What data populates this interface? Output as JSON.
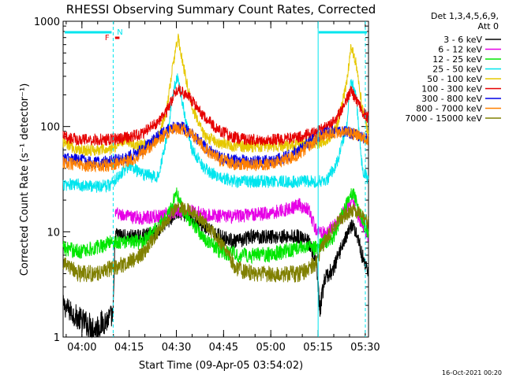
{
  "chart_data": {
    "type": "line",
    "title": "RHESSI Observing Summary Count Rates, Corrected",
    "xlabel": "Start Time (09-Apr-05 03:54:02)",
    "ylabel": "Corrected Count Rate (s⁻¹ detector⁻¹)",
    "y_scale": "log",
    "ylim": [
      1,
      1000
    ],
    "xlim_minutes": [
      0,
      97
    ],
    "x_tick_labels": [
      "04:00",
      "04:15",
      "04:30",
      "04:45",
      "05:00",
      "05:15",
      "05:30"
    ],
    "x_tick_minutes": [
      5.97,
      20.97,
      35.97,
      50.97,
      65.97,
      80.97,
      95.97
    ],
    "y_tick_labels": [
      "1",
      "10",
      "100",
      "1000"
    ],
    "y_ticks": [
      1,
      10,
      100,
      1000
    ],
    "legend_header": [
      "Det 1,3,4,5,6,9,",
      "Att 0"
    ],
    "legend_placement": "right",
    "timestamp": "16-Oct-2021 00:20",
    "flags": {
      "night_label": "N",
      "flare_label": "F"
    },
    "flag_colors": {
      "night": "#00e5ee",
      "flare": "#e60000"
    },
    "boundaries_minutes": {
      "night_end": 15.9,
      "night_start": 81.0
    },
    "series": [
      {
        "name": "3 - 6 keV",
        "color": "#000000",
        "key_minutes": [
          0,
          5,
          10,
          15.9,
          16.5,
          20,
          25,
          30,
          36,
          40,
          45,
          50,
          55,
          60,
          65,
          70,
          75,
          78,
          80.5,
          81.5,
          83,
          86,
          89,
          92,
          94,
          95,
          97
        ],
        "values": [
          2,
          1.5,
          1.2,
          1.6,
          9.5,
          9,
          9,
          10,
          15,
          14,
          11,
          9,
          8,
          9,
          9,
          9,
          9,
          8,
          5,
          1.7,
          3.5,
          4.5,
          8,
          12,
          8,
          6,
          4
        ]
      },
      {
        "name": "6 - 12 keV",
        "color": "#e600e6",
        "key_minutes": [
          0,
          15.9,
          16.5,
          20,
          25,
          30,
          36,
          40,
          45,
          50,
          55,
          60,
          65,
          70,
          75,
          78,
          80.5,
          83,
          86,
          89,
          92,
          94,
          97
        ],
        "values": [
          null,
          null,
          15,
          14,
          13.5,
          14,
          16,
          16,
          14.5,
          14,
          14,
          14.5,
          15,
          16,
          18,
          16,
          10,
          10,
          11,
          15,
          20,
          13,
          9
        ]
      },
      {
        "name": "12 - 25 keV",
        "color": "#00e600",
        "key_minutes": [
          0,
          5,
          10,
          15,
          20,
          25,
          30,
          34,
          36,
          38,
          42,
          46,
          50,
          55,
          60,
          65,
          70,
          75,
          78,
          80,
          83,
          86,
          89,
          92,
          94,
          97
        ],
        "values": [
          7,
          6.5,
          7,
          8,
          8,
          8,
          11,
          16,
          24,
          16,
          11,
          8,
          6.5,
          6,
          6,
          6,
          6.5,
          7,
          7.5,
          7,
          8,
          9,
          16,
          24,
          16,
          9
        ]
      },
      {
        "name": "25 - 50 keV",
        "color": "#00e5ee",
        "key_minutes": [
          0,
          5,
          10,
          15,
          18,
          21,
          25,
          30,
          33,
          35,
          36.5,
          38,
          41,
          45,
          50,
          55,
          60,
          65,
          70,
          75,
          78,
          81,
          84,
          87,
          90,
          91.5,
          93,
          95,
          97
        ],
        "values": [
          28,
          28,
          27,
          28,
          35,
          43,
          35,
          33,
          80,
          220,
          300,
          160,
          60,
          40,
          32,
          30,
          30,
          30,
          30,
          30,
          30,
          30,
          32,
          45,
          100,
          280,
          200,
          40,
          30
        ]
      },
      {
        "name": "50 - 100 keV",
        "color": "#e6c800",
        "key_minutes": [
          0,
          5,
          10,
          15,
          18,
          20,
          23,
          27,
          30,
          33,
          35,
          36.5,
          38,
          41,
          45,
          50,
          55,
          60,
          65,
          70,
          75,
          78,
          81,
          84,
          87,
          90,
          91.5,
          93,
          95,
          97
        ],
        "values": [
          70,
          60,
          60,
          60,
          70,
          75,
          65,
          68,
          75,
          150,
          400,
          700,
          400,
          150,
          80,
          70,
          65,
          65,
          65,
          65,
          68,
          70,
          70,
          75,
          100,
          250,
          600,
          400,
          150,
          80
        ]
      },
      {
        "name": "100 - 300 keV",
        "color": "#e60000",
        "key_minutes": [
          0,
          5,
          10,
          15,
          20,
          25,
          30,
          33,
          36,
          40,
          45,
          50,
          55,
          60,
          65,
          70,
          75,
          78,
          81,
          84,
          87,
          90,
          91.5,
          93,
          95,
          97
        ],
        "values": [
          80,
          75,
          75,
          75,
          78,
          85,
          110,
          140,
          230,
          190,
          120,
          90,
          78,
          75,
          75,
          76,
          80,
          85,
          90,
          100,
          120,
          180,
          220,
          180,
          140,
          120
        ]
      },
      {
        "name": "300 - 800 keV",
        "color": "#0000e6",
        "key_minutes": [
          0,
          5,
          10,
          15,
          20,
          25,
          30,
          35,
          38,
          42,
          46,
          50,
          55,
          60,
          65,
          70,
          75,
          78,
          81,
          84,
          87,
          90,
          92,
          95,
          97
        ],
        "values": [
          50,
          48,
          46,
          47,
          50,
          60,
          80,
          100,
          98,
          80,
          60,
          50,
          47,
          46,
          47,
          50,
          60,
          70,
          80,
          88,
          90,
          90,
          85,
          80,
          75
        ]
      },
      {
        "name": "800 - 7000 keV",
        "color": "#ff8000",
        "key_minutes": [
          0,
          5,
          10,
          15,
          20,
          25,
          30,
          35,
          38,
          42,
          46,
          50,
          55,
          60,
          65,
          70,
          75,
          78,
          81,
          84,
          87,
          90,
          92,
          95,
          97
        ],
        "values": [
          45,
          43,
          42,
          43,
          46,
          55,
          75,
          95,
          95,
          78,
          58,
          48,
          44,
          43,
          44,
          47,
          55,
          65,
          78,
          85,
          88,
          90,
          85,
          80,
          75
        ]
      },
      {
        "name": "7000 - 15000 keV",
        "color": "#808000",
        "key_minutes": [
          0,
          5,
          10,
          15,
          20,
          25,
          30,
          36,
          40,
          45,
          50,
          55,
          60,
          65,
          70,
          75,
          78,
          80,
          83,
          86,
          89,
          92,
          94,
          97
        ],
        "values": [
          5,
          4,
          4,
          4.5,
          5,
          6,
          10,
          17,
          16,
          12,
          8,
          4.5,
          4,
          4,
          4,
          4,
          4.5,
          5,
          8,
          11,
          14,
          16,
          15,
          12
        ]
      }
    ]
  }
}
